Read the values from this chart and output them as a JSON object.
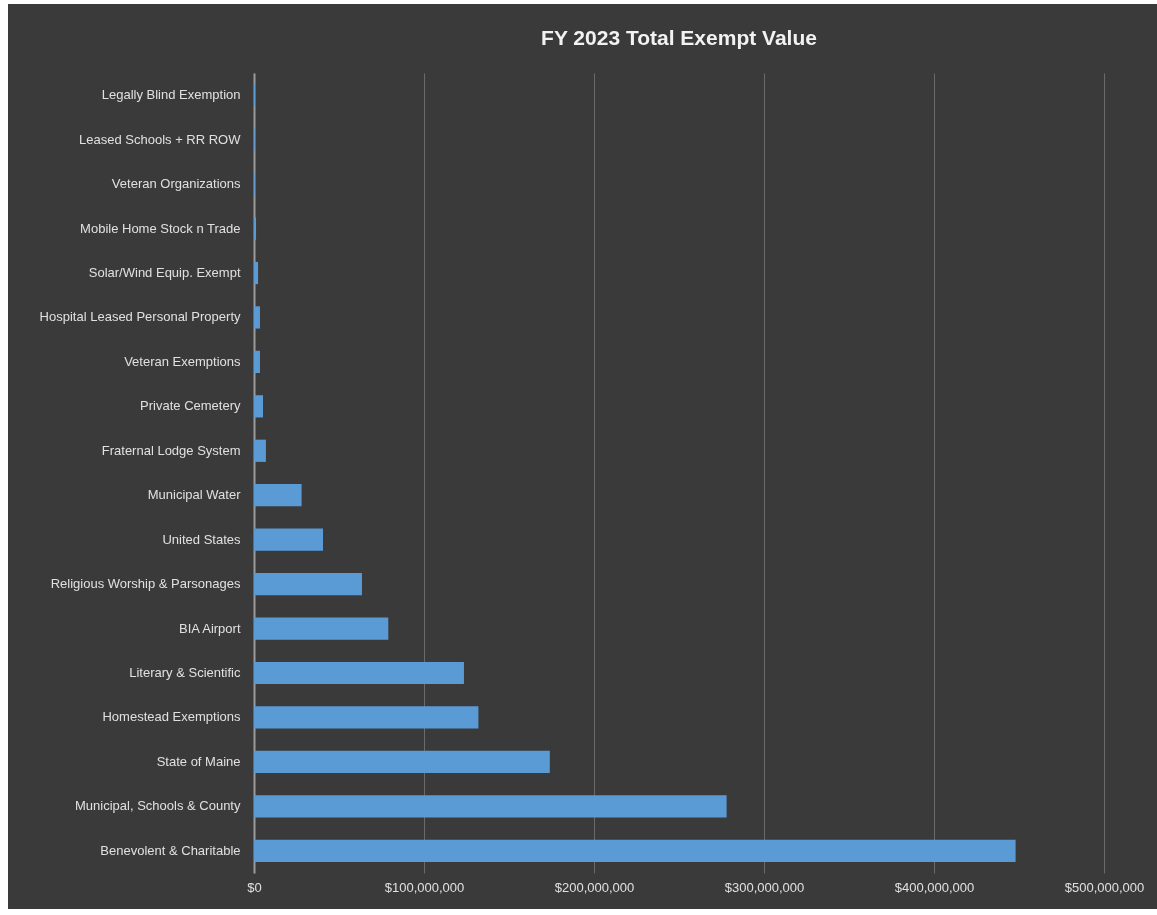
{
  "chart_data": {
    "type": "bar",
    "orientation": "horizontal",
    "title": "FY 2023 Total Exempt Value",
    "categories": [
      "Legally Blind Exemption",
      "Leased Schools + RR ROW",
      "Veteran Organizations",
      "Mobile Home Stock n Trade",
      "Solar/Wind Equip. Exempt",
      "Hospital Leased Personal Property",
      "Veteran Exemptions",
      "Private Cemetery",
      "Fraternal Lodge System",
      "Municipal Water",
      "United States",
      "Religious Worship & Parsonages",
      "BIA Airport",
      "Literary & Scientific",
      "Homestead Exemptions",
      "State of Maine",
      "Municipal, Schools & County",
      "Benevolent & Charitable"
    ],
    "values": [
      600000,
      500000,
      500000,
      1200000,
      2400000,
      3500000,
      3500000,
      5300000,
      7000000,
      28000000,
      40600000,
      63500000,
      79000000,
      123500000,
      132000000,
      174000000,
      278000000,
      448000000
    ],
    "color": "#5b9bd5",
    "xlim": [
      0,
      500000000
    ],
    "xticks": [
      {
        "value": 0,
        "label": "$0"
      },
      {
        "value": 100000000,
        "label": "$100,000,000"
      },
      {
        "value": 200000000,
        "label": "$200,000,000"
      },
      {
        "value": 300000000,
        "label": "$300,000,000"
      },
      {
        "value": 400000000,
        "label": "$400,000,000"
      },
      {
        "value": 500000000,
        "label": "$500,000,000"
      }
    ],
    "grid": "x"
  }
}
